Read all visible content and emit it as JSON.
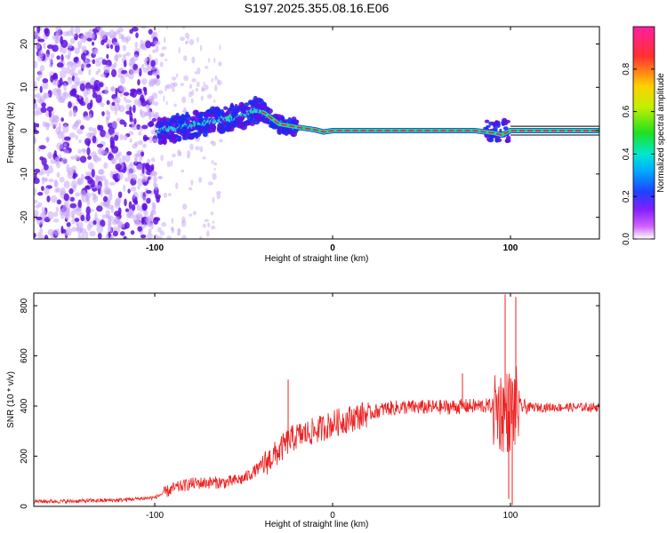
{
  "figure_title": "S197.2025.355.08.16.E06",
  "colors": {
    "snr_line": "#ee2222",
    "ridge_core": "#e8204a",
    "ridge_mid": "#22dd66",
    "ridge_outer": "#22ccee",
    "scatter_dark": "#6010e0",
    "scatter_light": "#c8a8f8"
  },
  "chart_data": [
    {
      "type": "heatmap",
      "xlabel": "Height of straight line (km)",
      "ylabel": "Frequency (Hz)",
      "xlim": [
        -168,
        150
      ],
      "ylim": [
        -25,
        24
      ],
      "xticks": [
        -100,
        0,
        100
      ],
      "xtick_labels": [
        "-100",
        "0",
        "100"
      ],
      "yticks": [
        -20,
        -10,
        0,
        10,
        20
      ],
      "ytick_labels": [
        "-20",
        "-10",
        "0",
        "10",
        "20"
      ],
      "ridge": {
        "x": [
          -98,
          -90,
          -80,
          -70,
          -60,
          -50,
          -42,
          -38,
          -30,
          -20,
          -10,
          -5,
          0,
          10,
          40,
          80,
          90,
          95,
          100,
          150
        ],
        "frequency": [
          0,
          0.4,
          1.2,
          2.0,
          2.8,
          3.5,
          4.8,
          4.0,
          1.5,
          0.8,
          0.2,
          -0.3,
          0,
          0,
          0,
          0,
          -0.5,
          -1,
          0,
          0
        ]
      },
      "colorbar": {
        "label": "Normalized spectral amplitude",
        "range": [
          0,
          1
        ],
        "ticks": [
          0.0,
          0.2,
          0.4,
          0.6,
          0.8
        ],
        "tick_labels": [
          "0.0",
          "0.2",
          "0.4",
          "0.6",
          "0.8"
        ]
      }
    },
    {
      "type": "line",
      "xlabel": "Height of straight line (km)",
      "ylabel": "SNR (10 * v/v)",
      "xlim": [
        -168,
        150
      ],
      "ylim": [
        0,
        850
      ],
      "xticks": [
        -100,
        0,
        100
      ],
      "xtick_labels": [
        "-100",
        "0",
        "100"
      ],
      "yticks": [
        0,
        200,
        400,
        600,
        800
      ],
      "ytick_labels": [
        "0",
        "200",
        "400",
        "600",
        "800"
      ],
      "series": [
        {
          "x": [
            -168,
            -150,
            -120,
            -100,
            -90,
            -80,
            -70,
            -60,
            -50,
            -40,
            -30,
            -25,
            -20,
            -10,
            0,
            10,
            20,
            30,
            40,
            60,
            80,
            90,
            95,
            100,
            105,
            110,
            130,
            150
          ],
          "values": [
            20,
            20,
            25,
            35,
            70,
            90,
            95,
            95,
            110,
            160,
            220,
            260,
            280,
            300,
            330,
            350,
            370,
            390,
            395,
            395,
            400,
            400,
            380,
            380,
            400,
            395,
            395,
            395
          ]
        }
      ],
      "spikes": [
        {
          "x": -25,
          "value": 505
        },
        {
          "x": 73,
          "value": 530
        },
        {
          "x": 97,
          "value": 845
        },
        {
          "x": 103,
          "value": 835
        },
        {
          "x": 99,
          "value": 30
        },
        {
          "x": 101,
          "value": 5
        }
      ]
    }
  ]
}
